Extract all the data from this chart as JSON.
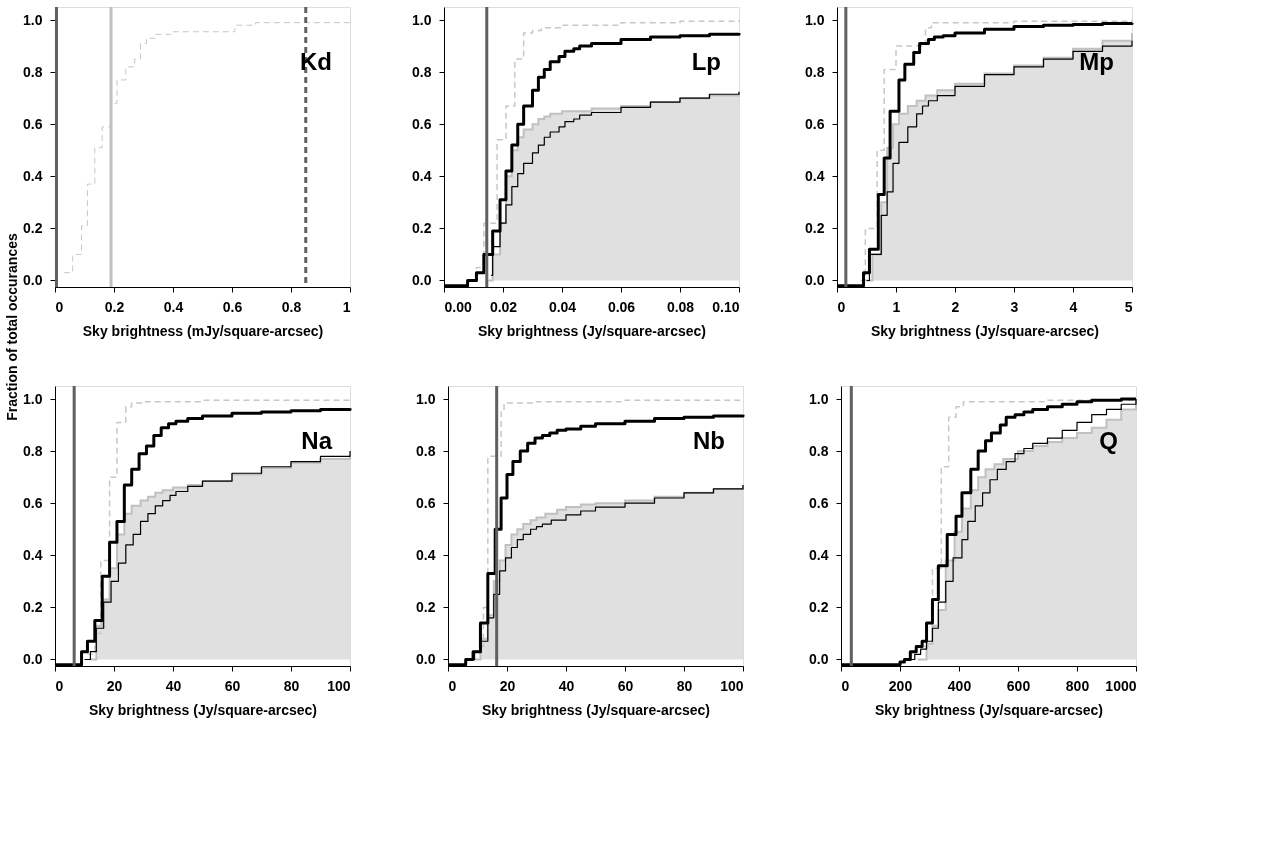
{
  "chart_data": [
    {
      "type": "step",
      "ylabel": "Fraction of total occurances",
      "xlabel": "Sky brightness (mJy/square-arcsec)",
      "annotations": [
        "Kd"
      ],
      "xlim": [
        0,
        1
      ],
      "xticks": [
        0,
        0.2,
        0.4,
        0.6,
        0.8,
        1
      ],
      "ylim": [
        -0.025,
        1.05
      ],
      "yticks": [
        {
          "value": 0,
          "label": "0.0"
        },
        {
          "value": 0.2,
          "label": "0.2"
        },
        {
          "value": 0.4,
          "label": "0.4"
        },
        {
          "value": 0.6,
          "label": "0.6"
        },
        {
          "value": 0.8,
          "label": "0.8"
        },
        {
          "value": 1,
          "label": "1.0"
        }
      ],
      "ref_lines": [
        {
          "axis": "x",
          "value": 0.005,
          "color": "#606060"
        },
        {
          "axis": "x",
          "value": 0.19,
          "color": "#c0c0c0"
        },
        {
          "axis": "x",
          "value": 0.85,
          "color": "#606060",
          "line_style": "dashed"
        }
      ],
      "series": [
        {
          "color": "#c8c8c8",
          "line_style": "dashed",
          "x": [
            0.03,
            0.06,
            0.09,
            0.11,
            0.135,
            0.16,
            0.19,
            0.21,
            0.24,
            0.27,
            0.29,
            0.31,
            0.34,
            0.4,
            0.61,
            0.68,
            1.0
          ],
          "values": [
            0.03,
            0.1,
            0.21,
            0.37,
            0.51,
            0.59,
            0.68,
            0.77,
            0.82,
            0.85,
            0.91,
            0.93,
            0.945,
            0.955,
            0.98,
            0.99,
            0.99
          ]
        }
      ]
    },
    {
      "type": "step",
      "xlabel": "Sky brightness (Jy/square-arcsec)",
      "annotations": [
        "Lp"
      ],
      "xlim": [
        0,
        0.1
      ],
      "xticks": [
        {
          "value": 0,
          "label": "0.00"
        },
        {
          "value": 0.02,
          "label": "0.02"
        },
        {
          "value": 0.04,
          "label": "0.04"
        },
        {
          "value": 0.06,
          "label": "0.06"
        },
        {
          "value": 0.08,
          "label": "0.08"
        },
        {
          "value": 0.1,
          "label": "0.10"
        }
      ],
      "ylim": [
        -0.025,
        1.05
      ],
      "yticks": [
        {
          "value": 0,
          "label": "0.0"
        },
        {
          "value": 0.2,
          "label": "0.2"
        },
        {
          "value": 0.4,
          "label": "0.4"
        },
        {
          "value": 0.6,
          "label": "0.6"
        },
        {
          "value": 0.8,
          "label": "0.8"
        },
        {
          "value": 1,
          "label": "1.0"
        }
      ],
      "ref_lines": [
        {
          "axis": "x",
          "value": 0.0145,
          "color": "#606060"
        }
      ],
      "series": [
        {
          "type": "area",
          "color": "#e0e0e0",
          "x": [
            0.015,
            0.0165,
            0.019,
            0.021,
            0.023,
            0.025,
            0.027,
            0.03,
            0.032,
            0.034,
            0.036,
            0.04,
            0.05,
            0.06,
            0.07,
            0.08,
            0.09,
            0.1
          ],
          "values": [
            0.0,
            0.1,
            0.22,
            0.4,
            0.5,
            0.55,
            0.58,
            0.6,
            0.62,
            0.63,
            0.64,
            0.65,
            0.66,
            0.67,
            0.685,
            0.7,
            0.71,
            0.72
          ]
        },
        {
          "color": "#c8c8c8",
          "line_style": "dashed",
          "x": [
            0.008,
            0.011,
            0.0135,
            0.018,
            0.021,
            0.024,
            0.027,
            0.03,
            0.033,
            0.04,
            0.06,
            0.08,
            0.1
          ],
          "values": [
            0.0,
            0.05,
            0.22,
            0.54,
            0.67,
            0.85,
            0.95,
            0.96,
            0.97,
            0.98,
            0.99,
            0.995,
            1.0
          ]
        },
        {
          "color": "#000000",
          "x": [
            0.016,
            0.0165,
            0.019,
            0.021,
            0.023,
            0.025,
            0.027,
            0.03,
            0.032,
            0.034,
            0.036,
            0.039,
            0.041,
            0.044,
            0.046,
            0.05,
            0.06,
            0.07,
            0.08,
            0.09,
            0.1
          ],
          "values": [
            0.02,
            0.13,
            0.22,
            0.29,
            0.36,
            0.41,
            0.45,
            0.49,
            0.52,
            0.55,
            0.57,
            0.59,
            0.61,
            0.62,
            0.635,
            0.645,
            0.665,
            0.685,
            0.7,
            0.715,
            0.725
          ]
        },
        {
          "color": "#000000",
          "x": [
            0.0,
            0.008,
            0.011,
            0.0135,
            0.0165,
            0.019,
            0.021,
            0.023,
            0.025,
            0.027,
            0.03,
            0.032,
            0.034,
            0.036,
            0.039,
            0.041,
            0.044,
            0.046,
            0.05,
            0.06,
            0.07,
            0.08,
            0.09,
            0.1
          ],
          "values": [
            -0.02,
            0.0,
            0.03,
            0.1,
            0.19,
            0.31,
            0.42,
            0.52,
            0.6,
            0.67,
            0.73,
            0.78,
            0.81,
            0.84,
            0.86,
            0.88,
            0.89,
            0.9,
            0.91,
            0.925,
            0.935,
            0.94,
            0.945,
            0.95
          ]
        }
      ]
    },
    {
      "type": "step",
      "xlabel": "Sky brightness (Jy/square-arcsec)",
      "annotations": [
        "Mp"
      ],
      "xlim": [
        0,
        5
      ],
      "xticks": [
        0,
        1,
        2,
        3,
        4,
        5
      ],
      "ylim": [
        -0.025,
        1.05
      ],
      "yticks": [
        {
          "value": 0,
          "label": "0.0"
        },
        {
          "value": 0.2,
          "label": "0.2"
        },
        {
          "value": 0.4,
          "label": "0.4"
        },
        {
          "value": 0.6,
          "label": "0.6"
        },
        {
          "value": 0.8,
          "label": "0.8"
        },
        {
          "value": 1,
          "label": "1.0"
        }
      ],
      "ref_lines": [
        {
          "axis": "x",
          "value": 0.15,
          "color": "#606060"
        }
      ],
      "series": [
        {
          "type": "area",
          "color": "#e0e0e0",
          "x": [
            0.5,
            0.6,
            0.75,
            0.85,
            0.95,
            1.05,
            1.2,
            1.35,
            1.5,
            1.7,
            2,
            2.5,
            3,
            3.5,
            4,
            4.5,
            5
          ],
          "values": [
            0.0,
            0.1,
            0.3,
            0.51,
            0.6,
            0.64,
            0.67,
            0.69,
            0.71,
            0.73,
            0.755,
            0.795,
            0.825,
            0.855,
            0.89,
            0.92,
            0.95
          ]
        },
        {
          "color": "#c8c8c8",
          "line_style": "dashed",
          "x": [
            0.4,
            0.48,
            0.68,
            0.8,
            1.0,
            1.5,
            1.6,
            3,
            5
          ],
          "values": [
            0.0,
            0.2,
            0.5,
            0.81,
            0.9,
            0.97,
            0.99,
            0.995,
            1.0
          ]
        },
        {
          "color": "#000000",
          "x": [
            0.5,
            0.55,
            0.75,
            0.85,
            0.95,
            1.05,
            1.2,
            1.35,
            1.45,
            1.55,
            1.7,
            2,
            2.5,
            3,
            3.5,
            4,
            4.5,
            5
          ],
          "values": [
            0.0,
            0.1,
            0.25,
            0.34,
            0.45,
            0.53,
            0.59,
            0.64,
            0.67,
            0.69,
            0.71,
            0.745,
            0.79,
            0.82,
            0.85,
            0.88,
            0.9,
            0.92
          ]
        },
        {
          "color": "#000000",
          "x": [
            0,
            0.45,
            0.55,
            0.7,
            0.8,
            0.9,
            1.05,
            1.15,
            1.3,
            1.4,
            1.55,
            1.65,
            1.8,
            2,
            2.5,
            3,
            3.5,
            4,
            4.5,
            5
          ],
          "values": [
            -0.02,
            0.03,
            0.12,
            0.33,
            0.47,
            0.65,
            0.77,
            0.83,
            0.875,
            0.91,
            0.925,
            0.935,
            0.94,
            0.95,
            0.965,
            0.975,
            0.98,
            0.983,
            0.987,
            0.99
          ]
        }
      ]
    },
    {
      "type": "step",
      "xlabel": "Sky brightness (Jy/square-arcsec)",
      "annotations": [
        "Na"
      ],
      "xlim": [
        0,
        100
      ],
      "xticks": [
        0,
        20,
        40,
        60,
        80,
        100
      ],
      "ylim": [
        -0.025,
        1.05
      ],
      "yticks": [
        {
          "value": 0,
          "label": "0.0"
        },
        {
          "value": 0.2,
          "label": "0.2"
        },
        {
          "value": 0.4,
          "label": "0.4"
        },
        {
          "value": 0.6,
          "label": "0.6"
        },
        {
          "value": 0.8,
          "label": "0.8"
        },
        {
          "value": 1,
          "label": "1.0"
        }
      ],
      "ref_lines": [
        {
          "axis": "x",
          "value": 6.5,
          "color": "#606060"
        }
      ],
      "series": [
        {
          "type": "area",
          "color": "#e0e0e0",
          "x": [
            12,
            14,
            16,
            18.5,
            21,
            23.5,
            26,
            29,
            31.5,
            34,
            36.5,
            40,
            45,
            50,
            60,
            70,
            80,
            90,
            100
          ],
          "values": [
            0.0,
            0.13,
            0.23,
            0.35,
            0.48,
            0.56,
            0.59,
            0.61,
            0.625,
            0.64,
            0.65,
            0.66,
            0.67,
            0.685,
            0.71,
            0.735,
            0.755,
            0.77,
            0.785
          ]
        },
        {
          "color": "#c8c8c8",
          "line_style": "dashed",
          "x": [
            11,
            13.5,
            15.5,
            18.5,
            21,
            24,
            26,
            30,
            50,
            100
          ],
          "values": [
            0.02,
            0.1,
            0.38,
            0.7,
            0.91,
            0.97,
            0.985,
            0.99,
            0.995,
            1.0
          ]
        },
        {
          "color": "#000000",
          "x": [
            10,
            12,
            14,
            16.5,
            19,
            21.5,
            24,
            26.5,
            29,
            31.5,
            34,
            36.5,
            39,
            41,
            45,
            50,
            60,
            70,
            80,
            90,
            100
          ],
          "values": [
            0.0,
            0.03,
            0.12,
            0.22,
            0.3,
            0.37,
            0.44,
            0.48,
            0.53,
            0.56,
            0.59,
            0.61,
            0.63,
            0.645,
            0.665,
            0.685,
            0.715,
            0.74,
            0.76,
            0.78,
            0.8
          ]
        },
        {
          "color": "#000000",
          "x": [
            0,
            9,
            11,
            13.5,
            16,
            18.5,
            21,
            23.5,
            26,
            28.5,
            31,
            33.5,
            36,
            38.5,
            41,
            45,
            50,
            60,
            70,
            80,
            90,
            100
          ],
          "values": [
            -0.02,
            0.03,
            0.07,
            0.15,
            0.32,
            0.45,
            0.53,
            0.67,
            0.73,
            0.79,
            0.82,
            0.86,
            0.89,
            0.905,
            0.915,
            0.925,
            0.935,
            0.945,
            0.95,
            0.955,
            0.96,
            0.965
          ]
        }
      ]
    },
    {
      "type": "step",
      "xlabel": "Sky brightness (Jy/square-arcsec)",
      "annotations": [
        "Nb"
      ],
      "xlim": [
        0,
        100
      ],
      "xticks": [
        0,
        20,
        40,
        60,
        80,
        100
      ],
      "ylim": [
        -0.025,
        1.05
      ],
      "yticks": [
        {
          "value": 0,
          "label": "0.0"
        },
        {
          "value": 0.2,
          "label": "0.2"
        },
        {
          "value": 0.4,
          "label": "0.4"
        },
        {
          "value": 0.6,
          "label": "0.6"
        },
        {
          "value": 0.8,
          "label": "0.8"
        },
        {
          "value": 1,
          "label": "1.0"
        }
      ],
      "ref_lines": [
        {
          "axis": "x",
          "value": 16.5,
          "color": "#606060"
        }
      ],
      "series": [
        {
          "type": "area",
          "color": "#e0e0e0",
          "x": [
            9,
            11,
            13.5,
            15.5,
            17.5,
            19.5,
            21.5,
            23.5,
            25.5,
            28,
            30,
            33,
            37,
            40,
            45,
            50,
            60,
            70,
            80,
            90,
            100
          ],
          "values": [
            0.0,
            0.08,
            0.17,
            0.3,
            0.38,
            0.44,
            0.48,
            0.5,
            0.52,
            0.535,
            0.545,
            0.56,
            0.575,
            0.585,
            0.595,
            0.6,
            0.61,
            0.625,
            0.64,
            0.655,
            0.67
          ]
        },
        {
          "color": "#c8c8c8",
          "line_style": "dashed",
          "x": [
            11,
            12,
            13.5,
            18,
            19,
            30,
            60,
            100
          ],
          "values": [
            0.05,
            0.2,
            0.78,
            0.95,
            0.985,
            0.99,
            0.995,
            1.0
          ]
        },
        {
          "color": "#000000",
          "x": [
            7,
            9,
            11,
            13.5,
            15.5,
            17.5,
            19.5,
            21.5,
            23.5,
            25.5,
            28,
            30,
            32,
            35,
            40,
            45,
            50,
            60,
            70,
            80,
            90,
            100
          ],
          "values": [
            0.0,
            0.03,
            0.07,
            0.16,
            0.25,
            0.34,
            0.39,
            0.43,
            0.46,
            0.48,
            0.5,
            0.51,
            0.52,
            0.535,
            0.555,
            0.57,
            0.585,
            0.6,
            0.62,
            0.64,
            0.655,
            0.67
          ]
        },
        {
          "color": "#000000",
          "x": [
            0,
            6,
            8.5,
            11,
            13.5,
            16,
            18,
            20,
            22,
            24.5,
            27,
            29.5,
            32,
            34.5,
            37,
            40,
            45,
            50,
            60,
            70,
            80,
            90,
            100
          ],
          "values": [
            -0.02,
            0.0,
            0.03,
            0.14,
            0.33,
            0.5,
            0.62,
            0.71,
            0.76,
            0.8,
            0.83,
            0.85,
            0.86,
            0.87,
            0.88,
            0.885,
            0.895,
            0.905,
            0.915,
            0.925,
            0.93,
            0.935,
            0.94
          ]
        }
      ]
    },
    {
      "type": "step",
      "xlabel": "Sky brightness (Jy/square-arcsec)",
      "annotations": [
        "Q"
      ],
      "xlim": [
        0,
        1000
      ],
      "xticks": [
        0,
        200,
        400,
        600,
        800,
        1000
      ],
      "ylim": [
        -0.025,
        1.05
      ],
      "yticks": [
        {
          "value": 0,
          "label": "0.0"
        },
        {
          "value": 0.2,
          "label": "0.2"
        },
        {
          "value": 0.4,
          "label": "0.4"
        },
        {
          "value": 0.6,
          "label": "0.6"
        },
        {
          "value": 0.8,
          "label": "0.8"
        },
        {
          "value": 1,
          "label": "1.0"
        }
      ],
      "ref_lines": [
        {
          "axis": "x",
          "value": 35,
          "color": "#606060"
        }
      ],
      "series": [
        {
          "type": "area",
          "color": "#e0e0e0",
          "x": [
            260,
            290,
            310,
            330,
            355,
            385,
            410,
            440,
            465,
            490,
            520,
            550,
            600,
            650,
            700,
            750,
            800,
            850,
            900,
            950,
            1000
          ],
          "values": [
            0.0,
            0.06,
            0.13,
            0.19,
            0.38,
            0.49,
            0.58,
            0.65,
            0.7,
            0.73,
            0.75,
            0.77,
            0.8,
            0.82,
            0.835,
            0.85,
            0.87,
            0.89,
            0.92,
            0.96,
            1.0
          ]
        },
        {
          "color": "#c8c8c8",
          "line_style": "dashed",
          "x": [
            280,
            310,
            340,
            365,
            390,
            415,
            700,
            1000
          ],
          "values": [
            0.05,
            0.35,
            0.74,
            0.93,
            0.97,
            0.99,
            0.995,
            1.0
          ]
        },
        {
          "color": "#000000",
          "x": [
            230,
            250,
            270,
            290,
            310,
            330,
            355,
            380,
            410,
            430,
            455,
            480,
            505,
            530,
            560,
            590,
            620,
            650,
            700,
            750,
            800,
            850,
            900,
            950,
            1000
          ],
          "values": [
            0.0,
            0.02,
            0.04,
            0.07,
            0.12,
            0.22,
            0.3,
            0.39,
            0.46,
            0.53,
            0.59,
            0.64,
            0.69,
            0.73,
            0.76,
            0.79,
            0.81,
            0.83,
            0.85,
            0.88,
            0.91,
            0.94,
            0.96,
            0.98,
            1.0
          ]
        },
        {
          "color": "#000000",
          "x": [
            0,
            200,
            215,
            235,
            255,
            275,
            290,
            310,
            330,
            360,
            390,
            410,
            440,
            465,
            490,
            510,
            540,
            560,
            590,
            620,
            650,
            700,
            750,
            800,
            850,
            950,
            1000
          ],
          "values": [
            -0.02,
            -0.01,
            0.0,
            0.03,
            0.05,
            0.07,
            0.14,
            0.23,
            0.36,
            0.48,
            0.55,
            0.64,
            0.73,
            0.8,
            0.84,
            0.87,
            0.9,
            0.93,
            0.94,
            0.95,
            0.96,
            0.97,
            0.98,
            0.99,
            0.995,
            1.0,
            1.0
          ]
        }
      ]
    }
  ]
}
